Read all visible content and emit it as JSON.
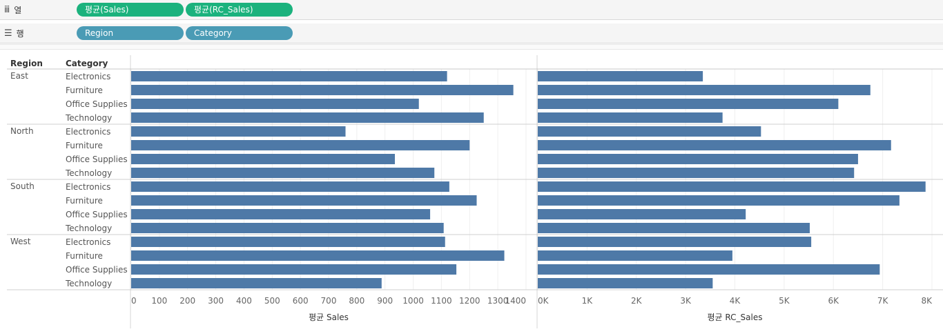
{
  "shelves": {
    "columns": {
      "label": "열",
      "icon": "columns-icon",
      "pills": [
        "평균(Sales)",
        "평균(RC_Sales)"
      ]
    },
    "rows": {
      "label": "행",
      "icon": "rows-icon",
      "pills": [
        "Region",
        "Category"
      ]
    }
  },
  "colors": {
    "bar": "#4e79a7",
    "measure_pill": "#1bb27d",
    "dimension_pill": "#4a9bb5"
  },
  "chart_data": {
    "type": "bar",
    "orientation": "horizontal",
    "row_headers": [
      "Region",
      "Category"
    ],
    "regions": [
      "East",
      "North",
      "South",
      "West"
    ],
    "categories": [
      "Electronics",
      "Furniture",
      "Office Supplies",
      "Technology"
    ],
    "panels": [
      {
        "xlabel": "평균 Sales",
        "xlim": [
          0,
          1400
        ],
        "ticks": [
          0,
          100,
          200,
          300,
          400,
          500,
          600,
          700,
          800,
          900,
          1000,
          1100,
          1200,
          1300,
          1400
        ],
        "tick_labels": [
          "0",
          "100",
          "200",
          "300",
          "400",
          "500",
          "600",
          "700",
          "800",
          "900",
          "1000",
          "1100",
          "1200",
          "1300",
          "1400"
        ],
        "values": [
          1120,
          1355,
          1020,
          1250,
          760,
          1200,
          935,
          1075,
          1128,
          1225,
          1060,
          1108,
          1113,
          1323,
          1153,
          888
        ]
      },
      {
        "xlabel": "평균 RC_Sales",
        "xlim": [
          0,
          8000
        ],
        "ticks": [
          0,
          1000,
          2000,
          3000,
          4000,
          5000,
          6000,
          7000,
          8000
        ],
        "tick_labels": [
          "0K",
          "1K",
          "2K",
          "3K",
          "4K",
          "5K",
          "6K",
          "7K",
          "8K"
        ],
        "values": [
          3350,
          6750,
          6100,
          3750,
          4530,
          7170,
          6500,
          6420,
          7870,
          7340,
          4220,
          5520,
          5550,
          3950,
          6940,
          3550
        ]
      }
    ],
    "grid": "vertical"
  }
}
